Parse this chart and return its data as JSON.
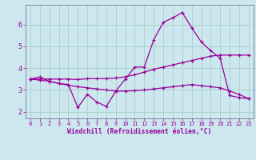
{
  "xlabel": "Windchill (Refroidissement éolien,°C)",
  "background_color": "#cce8ee",
  "line_color": "#990099",
  "grid_color": "#aacccc",
  "xlim": [
    -0.5,
    23.5
  ],
  "ylim": [
    1.7,
    6.9
  ],
  "yticks": [
    2,
    3,
    4,
    5,
    6
  ],
  "xticks": [
    0,
    1,
    2,
    3,
    4,
    5,
    6,
    7,
    8,
    9,
    10,
    11,
    12,
    13,
    14,
    15,
    16,
    17,
    18,
    19,
    20,
    21,
    22,
    23
  ],
  "line1_x": [
    0,
    1,
    2,
    3,
    4,
    5,
    6,
    7,
    8,
    9,
    10,
    11,
    12,
    13,
    14,
    15,
    16,
    17,
    18,
    19,
    20,
    21,
    22,
    23
  ],
  "line1_y": [
    3.5,
    3.6,
    3.4,
    3.3,
    3.25,
    2.2,
    2.8,
    2.45,
    2.25,
    2.95,
    3.5,
    4.05,
    4.05,
    5.3,
    6.1,
    6.3,
    6.55,
    5.85,
    5.2,
    4.8,
    4.45,
    2.75,
    2.65,
    2.6
  ],
  "line2_x": [
    0,
    1,
    2,
    3,
    4,
    5,
    6,
    7,
    8,
    9,
    10,
    11,
    12,
    13,
    14,
    15,
    16,
    17,
    18,
    19,
    20,
    21,
    22,
    23
  ],
  "line2_y": [
    3.5,
    3.5,
    3.5,
    3.5,
    3.5,
    3.48,
    3.52,
    3.52,
    3.52,
    3.55,
    3.6,
    3.7,
    3.82,
    3.95,
    4.05,
    4.15,
    4.25,
    4.35,
    4.45,
    4.55,
    4.6,
    4.6,
    4.6,
    4.6
  ],
  "line3_x": [
    0,
    1,
    2,
    3,
    4,
    5,
    6,
    7,
    8,
    9,
    10,
    11,
    12,
    13,
    14,
    15,
    16,
    17,
    18,
    19,
    20,
    21,
    22,
    23
  ],
  "line3_y": [
    3.5,
    3.45,
    3.4,
    3.3,
    3.22,
    3.15,
    3.1,
    3.05,
    3.0,
    2.95,
    2.95,
    2.97,
    3.0,
    3.05,
    3.1,
    3.15,
    3.2,
    3.25,
    3.2,
    3.15,
    3.1,
    2.95,
    2.8,
    2.6
  ]
}
